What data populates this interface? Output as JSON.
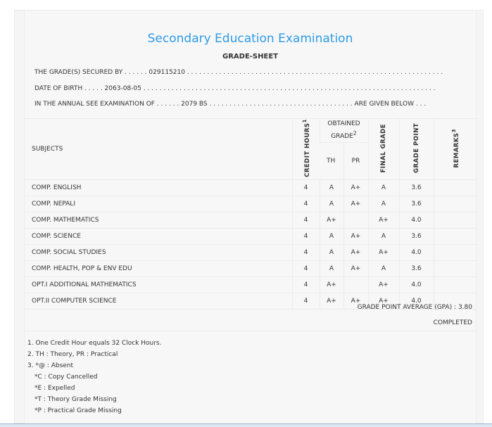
{
  "title": "Secondary Education Examination",
  "subtitle": "GRADE-SHEET",
  "lines": {
    "secured_by": "THE GRADE(S) SECURED BY . . . . . . 029115210 . . . . . . . . . . . . . . . . . . . . . . . . . . . . . . . . . . . . . . . . . . . . . . . . . . . . . . . . . . . . . . . .",
    "dob": "DATE OF BIRTH . . . . . 2063-08-05 . . . . . . . . . . . . . . . . . . . . . . . . . . . . . . . . . . . . . . . . . . . . . . . . . . . . . . . . . . . . . . . . . . . . . . . . .",
    "exam": "IN THE ANNUAL SEE EXAMINATION OF . . . . . . 2079 BS . . . . . . . . . . . . . . . . . . . . . . . . . . . . . . . . . . . . ARE GIVEN BELOW . . ."
  },
  "headers": {
    "subjects": "SUBJECTS",
    "credit": "CREDIT HOURS",
    "credit_sup": "1",
    "obtained": "OBTAINED GRADE",
    "obtained_sup": "2",
    "th": "TH",
    "pr": "PR",
    "final": "FINAL GRADE",
    "gp": "GRADE POINT",
    "remarks": "REMARKS",
    "remarks_sup": "3"
  },
  "rows": [
    {
      "subject": "COMP. ENGLISH",
      "credit": "4",
      "th": "A",
      "pr": "A+",
      "final": "A",
      "gp": "3.6",
      "remarks": ""
    },
    {
      "subject": "COMP. NEPALI",
      "credit": "4",
      "th": "A",
      "pr": "A+",
      "final": "A",
      "gp": "3.6",
      "remarks": ""
    },
    {
      "subject": "COMP. MATHEMATICS",
      "credit": "4",
      "th": "A+",
      "pr": "",
      "final": "A+",
      "gp": "4.0",
      "remarks": ""
    },
    {
      "subject": "COMP. SCIENCE",
      "credit": "4",
      "th": "A",
      "pr": "A+",
      "final": "A",
      "gp": "3.6",
      "remarks": ""
    },
    {
      "subject": "COMP. SOCIAL STUDIES",
      "credit": "4",
      "th": "A",
      "pr": "A+",
      "final": "A+",
      "gp": "4.0",
      "remarks": ""
    },
    {
      "subject": "COMP. HEALTH, POP & ENV EDU",
      "credit": "4",
      "th": "A",
      "pr": "A+",
      "final": "A",
      "gp": "3.6",
      "remarks": ""
    },
    {
      "subject": "OPT.I ADDITIONAL MATHEMATICS",
      "credit": "4",
      "th": "A+",
      "pr": "",
      "final": "A+",
      "gp": "4.0",
      "remarks": ""
    },
    {
      "subject": "OPT.II COMPUTER SCIENCE",
      "credit": "4",
      "th": "A+",
      "pr": "A+",
      "final": "A+",
      "gp": "4.0",
      "remarks": ""
    }
  ],
  "gpa": "GRADE POINT AVERAGE (GPA) : 3.80",
  "status": "COMPLETED",
  "notes": [
    "1. One Credit Hour equals 32 Clock Hours.",
    "2. TH : Theory, PR : Practical",
    "3. *@ : Absent",
    "*C : Copy Cancelled",
    "*E : Expelled",
    "*T : Theory Grade Missing",
    "*P : Practical Grade Missing"
  ]
}
